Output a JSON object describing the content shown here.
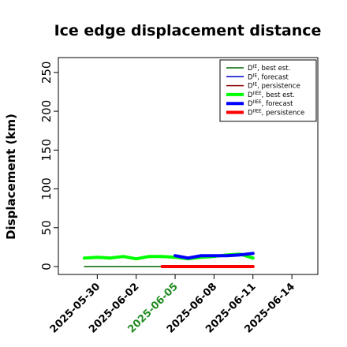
{
  "chart_data": {
    "type": "line",
    "title": "Ice edge displacement distance",
    "ylabel": "Displacement (km)",
    "xlabel": "",
    "ylim": [
      0,
      260
    ],
    "xlim": [
      "2025-05-27",
      "2025-06-16"
    ],
    "y_ticks": [
      0,
      50,
      100,
      150,
      200,
      250
    ],
    "x_ticks": [
      {
        "label": "2025-05-30",
        "color": "#000000"
      },
      {
        "label": "2025-06-02",
        "color": "#000000"
      },
      {
        "label": "2025-06-05",
        "color": "#228B22"
      },
      {
        "label": "2025-06-08",
        "color": "#000000"
      },
      {
        "label": "2025-06-11",
        "color": "#000000"
      },
      {
        "label": "2025-06-14",
        "color": "#000000"
      }
    ],
    "grid": false,
    "legend_position": "top-right",
    "series": [
      {
        "name": "D",
        "name_sup": "IE",
        "name_suffix": ", best est.",
        "color": "#006400",
        "width": "thin",
        "x": [
          "2025-05-29",
          "2025-05-30",
          "2025-05-31",
          "2025-06-01",
          "2025-06-02",
          "2025-06-03",
          "2025-06-04",
          "2025-06-05"
        ],
        "values": [
          0,
          0,
          0,
          0,
          0,
          0,
          0,
          0
        ]
      },
      {
        "name": "D",
        "name_sup": "IE",
        "name_suffix": ", forecast",
        "color": "#0000cd",
        "width": "thin",
        "x": [],
        "values": []
      },
      {
        "name": "D",
        "name_sup": "IE",
        "name_suffix": ", persistence",
        "color": "#8b0000",
        "width": "thin",
        "x": [],
        "values": []
      },
      {
        "name": "D",
        "name_sup": "IIEE",
        "name_suffix": ", best est.",
        "color": "#00ff00",
        "width": "thick",
        "x": [
          "2025-05-29",
          "2025-05-30",
          "2025-05-31",
          "2025-06-01",
          "2025-06-02",
          "2025-06-03",
          "2025-06-04",
          "2025-06-05",
          "2025-06-06",
          "2025-06-07",
          "2025-06-08",
          "2025-06-09",
          "2025-06-10",
          "2025-06-11"
        ],
        "values": [
          11,
          12,
          11,
          13,
          10,
          13,
          13,
          12,
          10,
          12,
          13,
          15,
          16,
          11
        ]
      },
      {
        "name": "D",
        "name_sup": "IIEE",
        "name_suffix": ", forecast",
        "color": "#0000ff",
        "width": "thick",
        "x": [
          "2025-06-05",
          "2025-06-06",
          "2025-06-07",
          "2025-06-08",
          "2025-06-09",
          "2025-06-10",
          "2025-06-11"
        ],
        "values": [
          14,
          11,
          14,
          14,
          14,
          15,
          17
        ]
      },
      {
        "name": "D",
        "name_sup": "IIEE",
        "name_suffix": ", persistence",
        "color": "#ff0000",
        "width": "thick",
        "x": [
          "2025-06-04",
          "2025-06-05",
          "2025-06-06",
          "2025-06-07",
          "2025-06-08",
          "2025-06-09",
          "2025-06-10",
          "2025-06-11"
        ],
        "values": [
          0,
          0,
          0,
          0,
          0,
          0,
          0,
          0
        ]
      }
    ]
  }
}
